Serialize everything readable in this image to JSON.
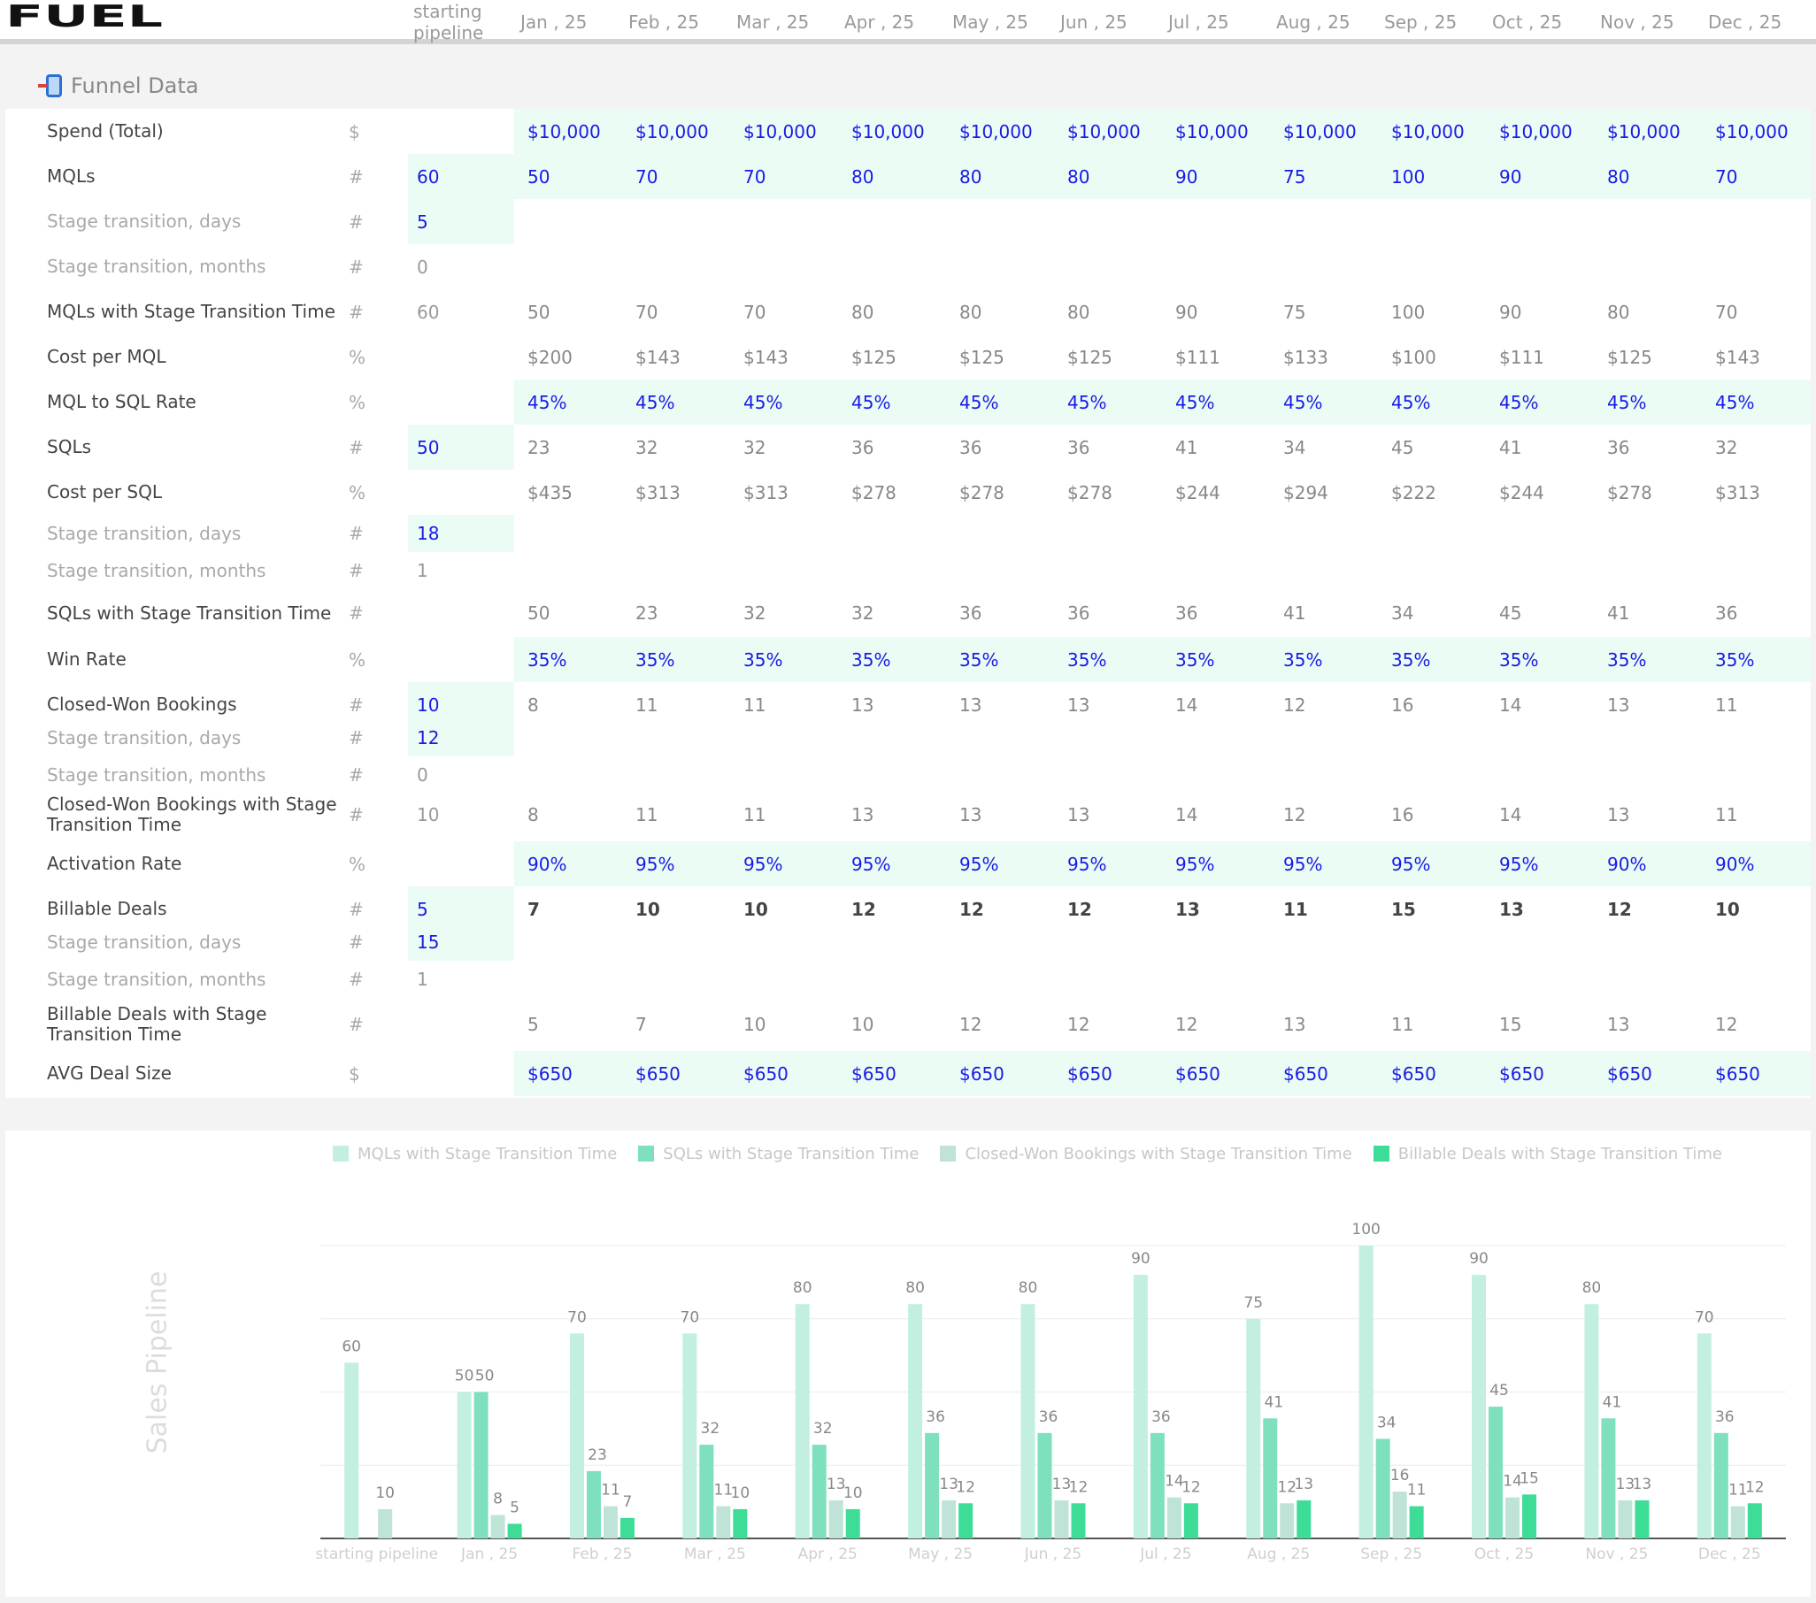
{
  "header": {
    "logo_text": "FUEL",
    "columns": [
      "starting pipeline",
      "Jan , 25",
      "Feb , 25",
      "Mar , 25",
      "Apr , 25",
      "May , 25",
      "Jun , 25",
      "Jul , 25",
      "Aug , 25",
      "Sep , 25",
      "Oct , 25",
      "Nov , 25",
      "Dec , 25"
    ]
  },
  "section": {
    "title": "Funnel Data",
    "icon": "mobile-phone-icon"
  },
  "colors": {
    "input_text": "#1a1ae6",
    "input_bg": "#eafcf4",
    "bar_mql": "#c2efe0",
    "bar_sql": "#7fe0bd",
    "bar_cwb": "#bfe3d6",
    "bar_bill": "#3ddc97"
  },
  "rows": [
    {
      "label": "Spend (Total)",
      "unit": "$",
      "start": "",
      "start_input": false,
      "values": [
        "$10,000",
        "$10,000",
        "$10,000",
        "$10,000",
        "$10,000",
        "$10,000",
        "$10,000",
        "$10,000",
        "$10,000",
        "$10,000",
        "$10,000",
        "$10,000"
      ],
      "style": "input-band"
    },
    {
      "label": "MQLs",
      "unit": "#",
      "start": "60",
      "start_input": true,
      "values": [
        "50",
        "70",
        "70",
        "80",
        "80",
        "80",
        "90",
        "75",
        "100",
        "90",
        "80",
        "70"
      ],
      "style": "input-band"
    },
    {
      "label": "Stage transition, days",
      "unit": "#",
      "start": "5",
      "start_input": true,
      "values": [],
      "style": "sub"
    },
    {
      "label": "Stage transition, months",
      "unit": "#",
      "start": "0",
      "start_input": false,
      "values": [],
      "style": "sub"
    },
    {
      "label": "MQLs with Stage Transition Time",
      "unit": "#",
      "start": "60",
      "start_input": false,
      "values": [
        "50",
        "70",
        "70",
        "80",
        "80",
        "80",
        "90",
        "75",
        "100",
        "90",
        "80",
        "70"
      ],
      "style": "calc"
    },
    {
      "label": "Cost per MQL",
      "unit": "%",
      "start": "",
      "start_input": false,
      "values": [
        "$200",
        "$143",
        "$143",
        "$125",
        "$125",
        "$125",
        "$111",
        "$133",
        "$100",
        "$111",
        "$125",
        "$143"
      ],
      "style": "calc"
    },
    {
      "label": "MQL to SQL Rate",
      "unit": "%",
      "start": "",
      "start_input": false,
      "values": [
        "45%",
        "45%",
        "45%",
        "45%",
        "45%",
        "45%",
        "45%",
        "45%",
        "45%",
        "45%",
        "45%",
        "45%"
      ],
      "style": "input-band"
    },
    {
      "label": "SQLs",
      "unit": "#",
      "start": "50",
      "start_input": true,
      "values": [
        "23",
        "32",
        "32",
        "36",
        "36",
        "36",
        "41",
        "34",
        "45",
        "41",
        "36",
        "32"
      ],
      "style": "calc"
    },
    {
      "label": "Cost per SQL",
      "unit": "%",
      "start": "",
      "start_input": false,
      "values": [
        "$435",
        "$313",
        "$313",
        "$278",
        "$278",
        "$278",
        "$244",
        "$294",
        "$222",
        "$244",
        "$278",
        "$313"
      ],
      "style": "calc"
    },
    {
      "label": "Stage transition, days",
      "unit": "#",
      "start": "18",
      "start_input": true,
      "values": [],
      "style": "sub"
    },
    {
      "label": "Stage transition, months",
      "unit": "#",
      "start": "1",
      "start_input": false,
      "values": [],
      "style": "sub"
    },
    {
      "label": "SQLs with Stage Transition Time",
      "unit": "#",
      "start": "",
      "start_input": false,
      "values": [
        "50",
        "23",
        "32",
        "32",
        "36",
        "36",
        "36",
        "41",
        "34",
        "45",
        "41",
        "36"
      ],
      "style": "calc"
    },
    {
      "label": "Win Rate",
      "unit": "%",
      "start": "",
      "start_input": false,
      "values": [
        "35%",
        "35%",
        "35%",
        "35%",
        "35%",
        "35%",
        "35%",
        "35%",
        "35%",
        "35%",
        "35%",
        "35%"
      ],
      "style": "input-band"
    },
    {
      "label": "Closed-Won Bookings",
      "unit": "#",
      "start": "10",
      "start_input": true,
      "values": [
        "8",
        "11",
        "11",
        "13",
        "13",
        "13",
        "14",
        "12",
        "16",
        "14",
        "13",
        "11"
      ],
      "style": "calc"
    },
    {
      "label": "Stage transition, days",
      "unit": "#",
      "start": "12",
      "start_input": true,
      "values": [],
      "style": "sub"
    },
    {
      "label": "Stage transition, months",
      "unit": "#",
      "start": "0",
      "start_input": false,
      "values": [],
      "style": "sub"
    },
    {
      "label": "Closed-Won Bookings with Stage Transition Time",
      "unit": "#",
      "start": "10",
      "start_input": false,
      "values": [
        "8",
        "11",
        "11",
        "13",
        "13",
        "13",
        "14",
        "12",
        "16",
        "14",
        "13",
        "11"
      ],
      "style": "calc"
    },
    {
      "label": "Activation Rate",
      "unit": "%",
      "start": "",
      "start_input": false,
      "values": [
        "90%",
        "95%",
        "95%",
        "95%",
        "95%",
        "95%",
        "95%",
        "95%",
        "95%",
        "95%",
        "90%",
        "90%"
      ],
      "style": "input-band"
    },
    {
      "label": "Billable Deals",
      "unit": "#",
      "start": "5",
      "start_input": true,
      "values": [
        "7",
        "10",
        "10",
        "12",
        "12",
        "12",
        "13",
        "11",
        "15",
        "13",
        "12",
        "10"
      ],
      "style": "bold"
    },
    {
      "label": "Stage transition, days",
      "unit": "#",
      "start": "15",
      "start_input": true,
      "values": [],
      "style": "sub"
    },
    {
      "label": "Stage transition, months",
      "unit": "#",
      "start": "1",
      "start_input": false,
      "values": [],
      "style": "sub"
    },
    {
      "label": "Billable Deals with Stage Transition Time",
      "unit": "#",
      "start": "",
      "start_input": false,
      "values": [
        "5",
        "7",
        "10",
        "10",
        "12",
        "12",
        "12",
        "13",
        "11",
        "15",
        "13",
        "12"
      ],
      "style": "calc"
    },
    {
      "label": "AVG Deal Size",
      "unit": "$",
      "start": "",
      "start_input": false,
      "values": [
        "$650",
        "$650",
        "$650",
        "$650",
        "$650",
        "$650",
        "$650",
        "$650",
        "$650",
        "$650",
        "$650",
        "$650"
      ],
      "style": "input-band"
    }
  ],
  "chart_data": {
    "type": "bar",
    "ylabel": "Sales Pipeline",
    "categories": [
      "starting pipeline",
      "Jan , 25",
      "Feb , 25",
      "Mar , 25",
      "Apr , 25",
      "May , 25",
      "Jun , 25",
      "Jul , 25",
      "Aug , 25",
      "Sep , 25",
      "Oct , 25",
      "Nov , 25",
      "Dec , 25"
    ],
    "ylim": [
      0,
      100
    ],
    "grid": true,
    "legend_position": "top",
    "series": [
      {
        "name": "MQLs with Stage Transition Time",
        "color": "#c2efe0",
        "values": [
          60,
          50,
          70,
          70,
          80,
          80,
          80,
          90,
          75,
          100,
          90,
          80,
          70
        ]
      },
      {
        "name": "SQLs with Stage Transition Time",
        "color": "#7fe0bd",
        "values": [
          null,
          50,
          23,
          32,
          32,
          36,
          36,
          36,
          41,
          34,
          45,
          41,
          36
        ]
      },
      {
        "name": "Closed-Won Bookings with Stage Transition Time",
        "color": "#bfe3d6",
        "values": [
          10,
          8,
          11,
          11,
          13,
          13,
          13,
          14,
          12,
          16,
          14,
          13,
          11
        ]
      },
      {
        "name": "Billable Deals with Stage Transition Time",
        "color": "#3ddc97",
        "values": [
          null,
          5,
          7,
          10,
          10,
          12,
          12,
          12,
          13,
          11,
          15,
          13,
          12
        ]
      }
    ]
  }
}
